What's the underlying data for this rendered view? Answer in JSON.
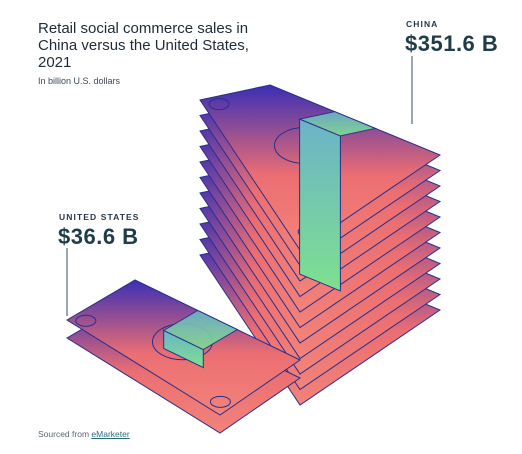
{
  "title": "Retail social commerce sales in China versus the United States, 2021",
  "subtitle": "In billion U.S. dollars",
  "source_prefix": "Sourced from",
  "source_link": "eMarketer",
  "colors": {
    "bill_top": "#3a2fb5",
    "bill_mid": "#ec6e72",
    "bill_bottom": "#f2837a",
    "band_top": "#6bb3c9",
    "band_bottom": "#7ee08f",
    "outline": "#2a2f8a",
    "leader": "#3a4b6b"
  },
  "chart_data": {
    "type": "bar",
    "categories": [
      "United States",
      "China"
    ],
    "values": [
      36.6,
      351.6
    ],
    "value_labels": [
      "$36.6 B",
      "$351.6 B"
    ],
    "category_labels": [
      "UNITED STATES",
      "CHINA"
    ],
    "title": "Retail social commerce sales in China versus the United States, 2021",
    "ylabel": "In billion U.S. dollars"
  }
}
